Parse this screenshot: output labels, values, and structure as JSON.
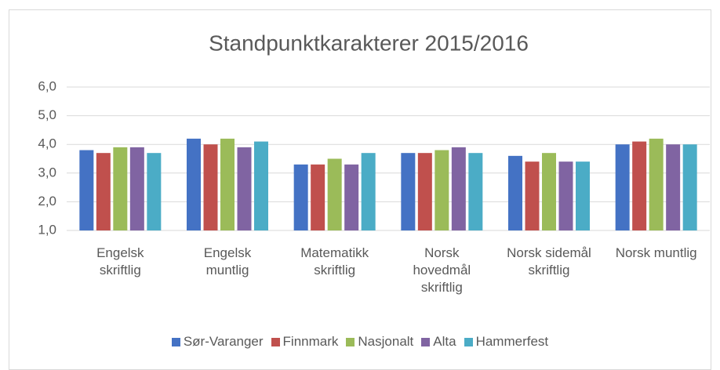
{
  "chart_data": {
    "type": "bar",
    "title": "Standpunktkarakterer 2015/2016",
    "categories": [
      "Engelsk skriftlig",
      "Engelsk muntlig",
      "Matematikk skriftlig",
      "Norsk hovedmål skriftlig",
      "Norsk sidemål skriftlig",
      "Norsk muntlig"
    ],
    "series": [
      {
        "name": "Sør-Varanger",
        "color": "#4472c4",
        "values": [
          3.8,
          4.2,
          3.3,
          3.7,
          3.6,
          4.0
        ]
      },
      {
        "name": "Finnmark",
        "color": "#c0504d",
        "values": [
          3.7,
          4.0,
          3.3,
          3.7,
          3.4,
          4.1
        ]
      },
      {
        "name": "Nasjonalt",
        "color": "#9bbb59",
        "values": [
          3.9,
          4.2,
          3.5,
          3.8,
          3.7,
          4.2
        ]
      },
      {
        "name": "Alta",
        "color": "#8064a2",
        "values": [
          3.9,
          3.9,
          3.3,
          3.9,
          3.4,
          4.0
        ]
      },
      {
        "name": "Hammerfest",
        "color": "#4bacc6",
        "values": [
          3.7,
          4.1,
          3.7,
          3.7,
          3.4,
          4.0
        ]
      }
    ],
    "ylim": [
      1,
      6
    ],
    "yticks": [
      {
        "value": 1,
        "label": "1,0"
      },
      {
        "value": 2,
        "label": "2,0"
      },
      {
        "value": 3,
        "label": "3,0"
      },
      {
        "value": 4,
        "label": "4,0"
      },
      {
        "value": 5,
        "label": "5,0"
      },
      {
        "value": 6,
        "label": "6,0"
      }
    ],
    "grid": true,
    "legend": "bottom"
  }
}
